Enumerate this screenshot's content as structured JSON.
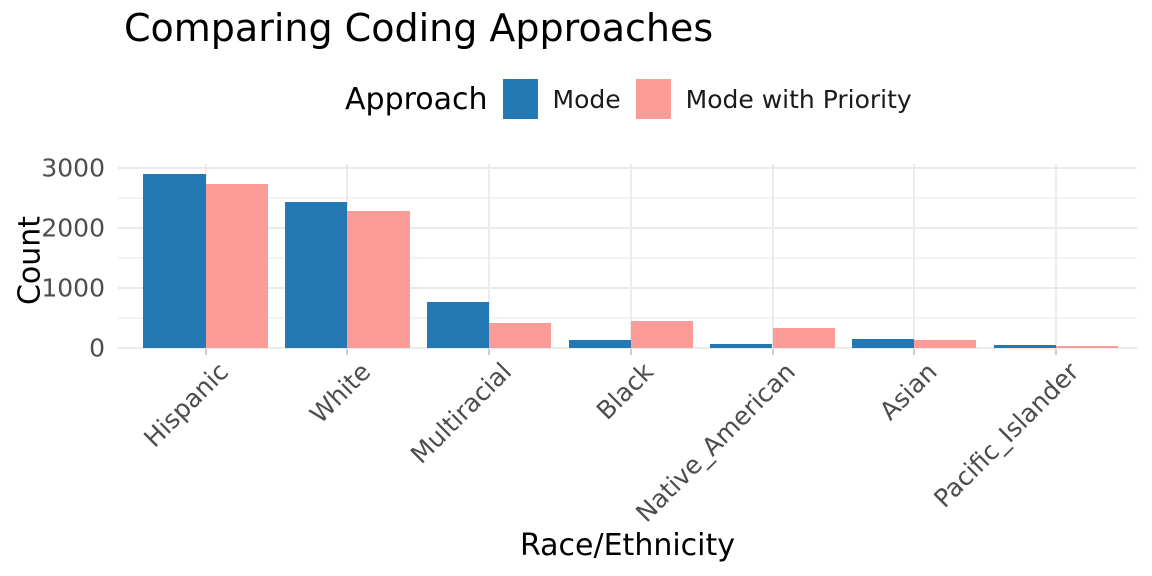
{
  "chart_data": {
    "type": "bar",
    "title": "Comparing Coding Approaches",
    "xlabel": "Race/Ethnicity",
    "ylabel": "Count",
    "legend_title": "Approach",
    "legend_position": "top",
    "grid": true,
    "categories": [
      "Hispanic",
      "White",
      "Multiracial",
      "Black",
      "Native_American",
      "Asian",
      "Pacific_Islander"
    ],
    "series": [
      {
        "name": "Mode",
        "color": "#2478b4",
        "values": [
          2900,
          2440,
          770,
          130,
          70,
          145,
          45
        ]
      },
      {
        "name": "Mode with Priority",
        "color": "#fc9c99",
        "values": [
          2740,
          2290,
          420,
          455,
          340,
          140,
          30
        ]
      }
    ],
    "yticks": [
      0,
      1000,
      2000,
      3000
    ],
    "ylim": [
      0,
      3060
    ],
    "colors": {
      "grid_major": "#ebebeb",
      "grid_minor": "#f3f3f3",
      "tick_mark": "#cfcfcf",
      "tick_label": "#4d4d4d",
      "text": "#000000"
    }
  }
}
